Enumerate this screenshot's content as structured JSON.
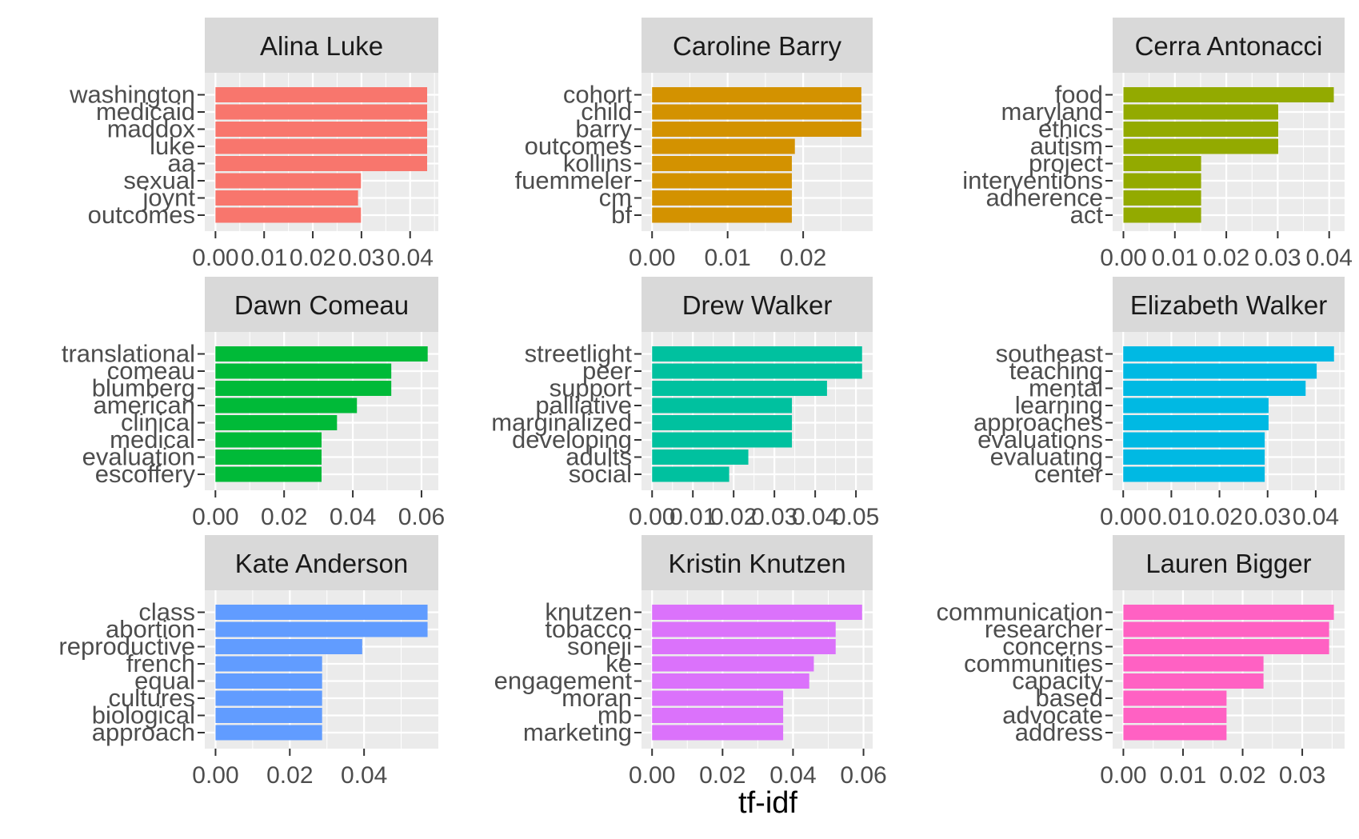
{
  "chart_data": {
    "type": "bar",
    "orientation": "horizontal",
    "facet_layout": "3x3 grid",
    "xlabel": "tf-idf",
    "ylabel": "",
    "grid": true,
    "legend": "none",
    "panels": [
      {
        "title": "Alina Luke",
        "color": "#F8766D",
        "categories": [
          "washington",
          "medicaid",
          "maddox",
          "luke",
          "aa",
          "sexual",
          "joynt",
          "outcomes"
        ],
        "values": [
          0.0435,
          0.0435,
          0.0435,
          0.0435,
          0.0435,
          0.0299,
          0.0293,
          0.0299
        ],
        "xlim": [
          -0.0022,
          0.0458
        ],
        "ticks": [
          0,
          0.01,
          0.02,
          0.03,
          0.04
        ],
        "tick_labels": [
          "0.00",
          "0.01",
          "0.02",
          "0.03",
          "0.04"
        ]
      },
      {
        "title": "Caroline Barry",
        "color": "#D39200",
        "categories": [
          "cohort",
          "child",
          "barry",
          "outcomes",
          "kollins",
          "fuemmeler",
          "cm",
          "bf"
        ],
        "values": [
          0.0277,
          0.0277,
          0.0277,
          0.0189,
          0.0185,
          0.0185,
          0.0185,
          0.0185
        ],
        "xlim": [
          -0.0014,
          0.0292
        ],
        "ticks": [
          0,
          0.01,
          0.02
        ],
        "tick_labels": [
          "0.00",
          "0.01",
          "0.02"
        ]
      },
      {
        "title": "Cerra Antonacci",
        "color": "#93AA00",
        "categories": [
          "food",
          "maryland",
          "ethics",
          "autism",
          "project",
          "interventions",
          "adherence",
          "act"
        ],
        "values": [
          0.0409,
          0.0301,
          0.0301,
          0.0301,
          0.0151,
          0.0151,
          0.0151,
          0.0151
        ],
        "xlim": [
          -0.0021,
          0.043
        ],
        "ticks": [
          0,
          0.01,
          0.02,
          0.03,
          0.04
        ],
        "tick_labels": [
          "0.00",
          "0.01",
          "0.02",
          "0.03",
          "0.04"
        ]
      },
      {
        "title": "Dawn Comeau",
        "color": "#00BA38",
        "categories": [
          "translational",
          "comeau",
          "blumberg",
          "american",
          "clinical",
          "medical",
          "evaluation",
          "escoffery"
        ],
        "values": [
          0.0618,
          0.0512,
          0.0512,
          0.0412,
          0.0354,
          0.0309,
          0.0309,
          0.0309
        ],
        "xlim": [
          -0.0031,
          0.0649
        ],
        "ticks": [
          0,
          0.02,
          0.04,
          0.06
        ],
        "tick_labels": [
          "0.00",
          "0.02",
          "0.04",
          "0.06"
        ]
      },
      {
        "title": "Drew Walker",
        "color": "#00C19F",
        "categories": [
          "streetlight",
          "peer",
          "support",
          "palliative",
          "marginalized",
          "developing",
          "adults",
          "social"
        ],
        "values": [
          0.0515,
          0.0515,
          0.0429,
          0.0343,
          0.0343,
          0.0343,
          0.0236,
          0.0189
        ],
        "xlim": [
          -0.0026,
          0.0541
        ],
        "ticks": [
          0,
          0.01,
          0.02,
          0.03,
          0.04,
          0.05
        ],
        "tick_labels": [
          "0.00",
          "0.01",
          "0.02",
          "0.03",
          "0.04",
          "0.05"
        ]
      },
      {
        "title": "Elizabeth Walker",
        "color": "#00B9E3",
        "categories": [
          "southeast",
          "teaching",
          "mental",
          "learning",
          "approaches",
          "evaluations",
          "evaluating",
          "center"
        ],
        "values": [
          0.0438,
          0.0402,
          0.0379,
          0.0302,
          0.0302,
          0.0294,
          0.0294,
          0.0294
        ],
        "xlim": [
          -0.0022,
          0.046
        ],
        "ticks": [
          0,
          0.01,
          0.02,
          0.03,
          0.04
        ],
        "tick_labels": [
          "0.00",
          "0.01",
          "0.02",
          "0.03",
          "0.04"
        ]
      },
      {
        "title": "Kate Anderson",
        "color": "#619CFF",
        "categories": [
          "class",
          "abortion",
          "reproductive",
          "french",
          "equal",
          "cultures",
          "biological",
          "approach"
        ],
        "values": [
          0.0571,
          0.0571,
          0.0395,
          0.0287,
          0.0287,
          0.0287,
          0.0287,
          0.0287
        ],
        "xlim": [
          -0.0029,
          0.06
        ],
        "ticks": [
          0,
          0.02,
          0.04
        ],
        "tick_labels": [
          "0.00",
          "0.02",
          "0.04"
        ]
      },
      {
        "title": "Kristin Knutzen",
        "color": "#DB72FB",
        "categories": [
          "knutzen",
          "tobacco",
          "soneji",
          "ke",
          "engagement",
          "moran",
          "mb",
          "marketing"
        ],
        "values": [
          0.0596,
          0.0521,
          0.0521,
          0.0459,
          0.0446,
          0.0372,
          0.0372,
          0.0372
        ],
        "xlim": [
          -0.003,
          0.0626
        ],
        "ticks": [
          0,
          0.02,
          0.04,
          0.06
        ],
        "tick_labels": [
          "0.00",
          "0.02",
          "0.04",
          "0.06"
        ]
      },
      {
        "title": "Lauren Bigger",
        "color": "#FF61C3",
        "categories": [
          "communication",
          "researcher",
          "concerns",
          "communities",
          "capacity",
          "based",
          "advocate",
          "address"
        ],
        "values": [
          0.0353,
          0.0345,
          0.0345,
          0.0235,
          0.0235,
          0.0173,
          0.0173,
          0.0173
        ],
        "xlim": [
          -0.0018,
          0.0371
        ],
        "ticks": [
          0,
          0.01,
          0.02,
          0.03
        ],
        "tick_labels": [
          "0.00",
          "0.01",
          "0.02",
          "0.03"
        ]
      }
    ]
  }
}
